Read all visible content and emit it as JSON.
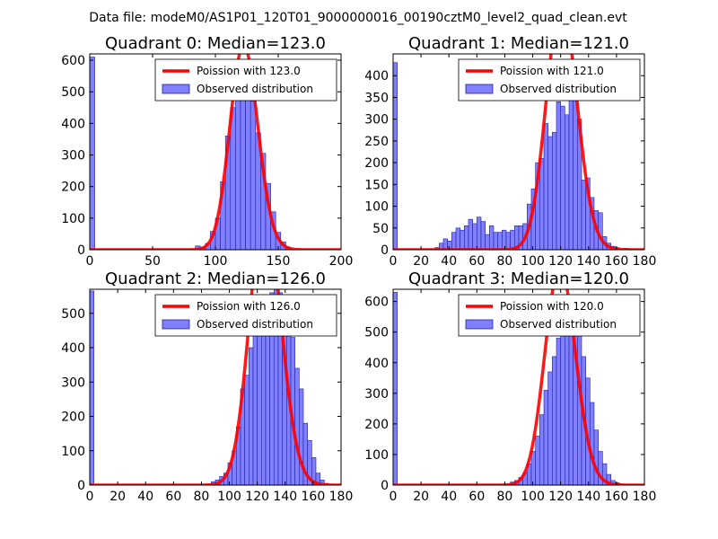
{
  "suptitle": "Data file: modeM0/AS1P01_120T01_9000000016_00190cztM0_level2_quad_clean.evt",
  "colors": {
    "poisson": "#ff0000",
    "observed_fill": "#7f7fff",
    "observed_edge": "#2020a0"
  },
  "chart_data": [
    {
      "type": "bar",
      "title": "Quadrant 0: Median=123.0",
      "median": 123.0,
      "xlim": [
        0,
        200
      ],
      "ylim": [
        0,
        620
      ],
      "xticks": [
        0,
        50,
        100,
        150,
        200
      ],
      "yticks": [
        0,
        100,
        200,
        300,
        400,
        500,
        600
      ],
      "bin_width": 4,
      "bins": [
        [
          0,
          610
        ],
        [
          84,
          12
        ],
        [
          88,
          8
        ],
        [
          92,
          20
        ],
        [
          96,
          58
        ],
        [
          100,
          100
        ],
        [
          104,
          215
        ],
        [
          108,
          360
        ],
        [
          112,
          450
        ],
        [
          116,
          570
        ],
        [
          120,
          590
        ],
        [
          124,
          560
        ],
        [
          128,
          470
        ],
        [
          132,
          370
        ],
        [
          136,
          305
        ],
        [
          140,
          210
        ],
        [
          144,
          120
        ],
        [
          148,
          55
        ],
        [
          152,
          25
        ],
        [
          156,
          8
        ]
      ],
      "poisson_lambda": 123.0,
      "legend": {
        "fit": "Poission with 123.0",
        "observed": "Observed distribution"
      }
    },
    {
      "type": "bar",
      "title": "Quadrant 1: Median=121.0",
      "median": 121.0,
      "xlim": [
        0,
        180
      ],
      "ylim": [
        0,
        450
      ],
      "xticks": [
        0,
        20,
        40,
        60,
        80,
        100,
        120,
        140,
        160,
        180
      ],
      "yticks": [
        0,
        50,
        100,
        150,
        200,
        250,
        300,
        350,
        400
      ],
      "bin_width": 3,
      "bins": [
        [
          0,
          430
        ],
        [
          30,
          5
        ],
        [
          33,
          15
        ],
        [
          36,
          25
        ],
        [
          39,
          20
        ],
        [
          42,
          40
        ],
        [
          45,
          50
        ],
        [
          48,
          45
        ],
        [
          51,
          55
        ],
        [
          54,
          70
        ],
        [
          57,
          60
        ],
        [
          60,
          75
        ],
        [
          63,
          65
        ],
        [
          66,
          35
        ],
        [
          69,
          55
        ],
        [
          72,
          40
        ],
        [
          75,
          40
        ],
        [
          78,
          45
        ],
        [
          81,
          40
        ],
        [
          84,
          45
        ],
        [
          87,
          55
        ],
        [
          90,
          55
        ],
        [
          93,
          60
        ],
        [
          96,
          105
        ],
        [
          99,
          140
        ],
        [
          102,
          200
        ],
        [
          105,
          210
        ],
        [
          108,
          290
        ],
        [
          111,
          260
        ],
        [
          114,
          270
        ],
        [
          117,
          340
        ],
        [
          120,
          330
        ],
        [
          123,
          310
        ],
        [
          126,
          360
        ],
        [
          129,
          410
        ],
        [
          132,
          300
        ],
        [
          135,
          160
        ],
        [
          138,
          165
        ],
        [
          141,
          120
        ],
        [
          144,
          90
        ],
        [
          147,
          85
        ],
        [
          150,
          30
        ],
        [
          153,
          15
        ],
        [
          156,
          8
        ],
        [
          159,
          5
        ],
        [
          165,
          3
        ],
        [
          168,
          2
        ]
      ],
      "poisson_lambda": 121.0,
      "legend": {
        "fit": "Poission with 121.0",
        "observed": "Observed distribution"
      }
    },
    {
      "type": "bar",
      "title": "Quadrant 2: Median=126.0",
      "median": 126.0,
      "xlim": [
        0,
        180
      ],
      "ylim": [
        0,
        570
      ],
      "xticks": [
        0,
        20,
        40,
        60,
        80,
        100,
        120,
        140,
        160,
        180
      ],
      "yticks": [
        0,
        100,
        200,
        300,
        400,
        500
      ],
      "bin_width": 3,
      "bins": [
        [
          0,
          565
        ],
        [
          87,
          10
        ],
        [
          90,
          15
        ],
        [
          93,
          25
        ],
        [
          96,
          35
        ],
        [
          99,
          65
        ],
        [
          102,
          100
        ],
        [
          105,
          170
        ],
        [
          108,
          280
        ],
        [
          111,
          320
        ],
        [
          114,
          400
        ],
        [
          117,
          440
        ],
        [
          120,
          460
        ],
        [
          123,
          470
        ],
        [
          126,
          530
        ],
        [
          129,
          560
        ],
        [
          132,
          570
        ],
        [
          135,
          560
        ],
        [
          138,
          540
        ],
        [
          141,
          480
        ],
        [
          144,
          430
        ],
        [
          147,
          340
        ],
        [
          150,
          280
        ],
        [
          153,
          180
        ],
        [
          156,
          130
        ],
        [
          159,
          80
        ],
        [
          162,
          35
        ],
        [
          165,
          15
        ],
        [
          168,
          5
        ]
      ],
      "poisson_lambda": 126.0,
      "legend": {
        "fit": "Poission with 126.0",
        "observed": "Observed distribution"
      }
    },
    {
      "type": "bar",
      "title": "Quadrant 3: Median=120.0",
      "median": 120.0,
      "xlim": [
        0,
        180
      ],
      "ylim": [
        0,
        640
      ],
      "xticks": [
        0,
        20,
        40,
        60,
        80,
        100,
        120,
        140,
        160,
        180
      ],
      "yticks": [
        0,
        100,
        200,
        300,
        400,
        500,
        600
      ],
      "bin_width": 3,
      "bins": [
        [
          0,
          630
        ],
        [
          84,
          10
        ],
        [
          87,
          15
        ],
        [
          90,
          25
        ],
        [
          93,
          40
        ],
        [
          96,
          70
        ],
        [
          99,
          110
        ],
        [
          102,
          160
        ],
        [
          105,
          230
        ],
        [
          108,
          310
        ],
        [
          111,
          370
        ],
        [
          114,
          420
        ],
        [
          117,
          480
        ],
        [
          120,
          560
        ],
        [
          123,
          620
        ],
        [
          126,
          590
        ],
        [
          129,
          560
        ],
        [
          132,
          500
        ],
        [
          135,
          420
        ],
        [
          138,
          350
        ],
        [
          141,
          270
        ],
        [
          144,
          180
        ],
        [
          147,
          110
        ],
        [
          150,
          70
        ],
        [
          153,
          35
        ],
        [
          156,
          15
        ],
        [
          159,
          8
        ],
        [
          162,
          3
        ]
      ],
      "poisson_lambda": 120.0,
      "legend": {
        "fit": "Poission with 120.0",
        "observed": "Observed distribution"
      }
    }
  ]
}
